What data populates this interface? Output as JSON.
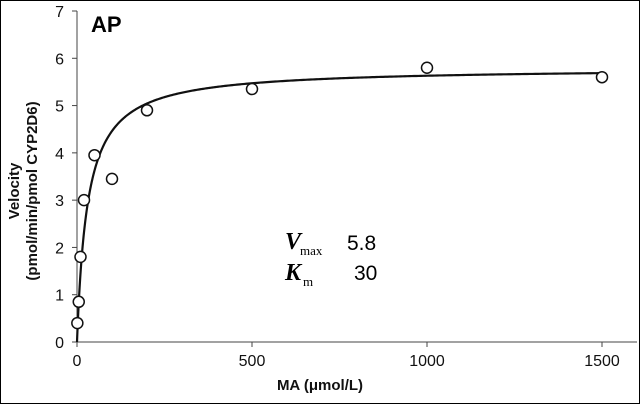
{
  "chart_data": {
    "type": "scatter",
    "panel_label": "AP",
    "xlabel": "MA (μmol/L)",
    "ylabel": "Velocity (pmol/min/pmol CYP2D6)",
    "ylabel_lines": [
      "Velocity",
      "(pmol/min/pmol CYP2D6)"
    ],
    "xlim": [
      0,
      1600
    ],
    "ylim": [
      0,
      7
    ],
    "xticks": [
      0,
      500,
      1000,
      1500
    ],
    "yticks": [
      0,
      1,
      2,
      3,
      4,
      5,
      6,
      7
    ],
    "grid": false,
    "points": {
      "x": [
        1,
        5,
        10,
        20,
        50,
        100,
        200,
        500,
        1000,
        1500
      ],
      "y": [
        0.4,
        0.85,
        1.8,
        3.0,
        3.95,
        3.45,
        4.9,
        5.35,
        5.8,
        5.6
      ]
    },
    "fit": {
      "model": "michaelis-menten",
      "vmax": 5.8,
      "km": 30
    },
    "params": [
      {
        "symbol": "V",
        "subscript": "max",
        "value": "5.8"
      },
      {
        "symbol": "K",
        "subscript": "m",
        "value": "30"
      }
    ],
    "colors": {
      "line": "#111111",
      "marker_edge": "#111111",
      "marker_fill": "#ffffff"
    }
  }
}
